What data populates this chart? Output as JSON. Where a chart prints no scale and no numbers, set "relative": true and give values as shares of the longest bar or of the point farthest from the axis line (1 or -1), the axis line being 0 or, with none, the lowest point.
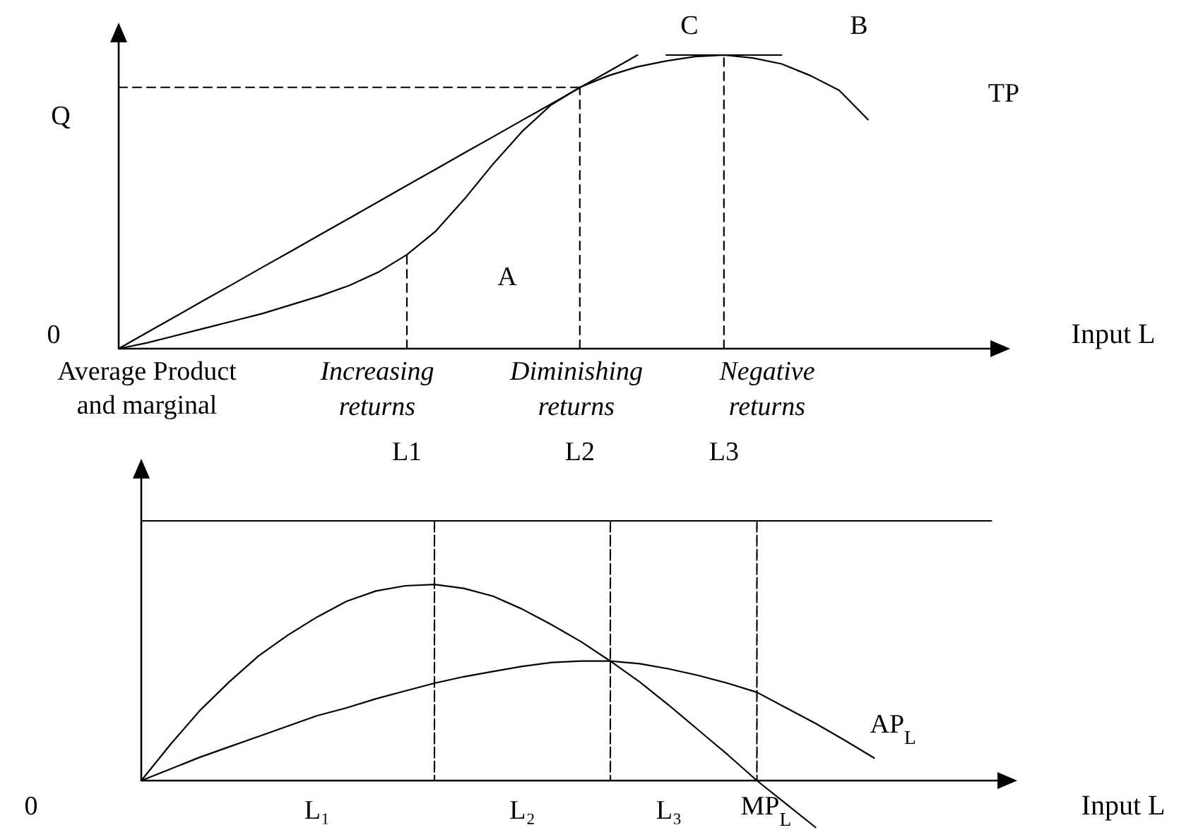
{
  "chart_data": [
    {
      "type": "line",
      "relative": true,
      "xlabel": "Input L",
      "categories": [
        null,
        null,
        null,
        null,
        null,
        null,
        null,
        null,
        null,
        null,
        "L1",
        null,
        null,
        null,
        null,
        null,
        "L2",
        null,
        null,
        null,
        null,
        "L3",
        null,
        null,
        null,
        null,
        null,
        null,
        null,
        null,
        null
      ],
      "series": [
        {
          "name": "TP",
          "color": "#000000",
          "values": [
            0,
            0.02,
            0.045,
            0.07,
            0.095,
            0.12,
            0.15,
            0.18,
            0.215,
            0.26,
            0.32,
            0.4,
            0.51,
            0.63,
            0.74,
            0.83,
            0.89,
            0.93,
            0.96,
            0.98,
            0.995,
            1,
            0.99,
            0.97,
            0.93,
            0.88,
            0.78,
            null,
            null,
            null,
            null
          ]
        },
        {
          "color": "#000000",
          "values": [
            0,
            0.056,
            0.111,
            0.167,
            0.222,
            0.278,
            0.333,
            0.389,
            0.444,
            0.5,
            0.556,
            0.611,
            0.667,
            0.722,
            0.778,
            0.833,
            0.889,
            0.944,
            1,
            null,
            null,
            null,
            null,
            null,
            null,
            null,
            null,
            null,
            null,
            null,
            null
          ]
        },
        {
          "color": "#000000",
          "values": [
            null,
            null,
            null,
            null,
            null,
            null,
            null,
            null,
            null,
            null,
            null,
            null,
            null,
            null,
            null,
            null,
            null,
            null,
            null,
            1,
            1,
            1,
            1,
            1,
            null,
            null,
            null,
            null,
            null,
            null,
            null
          ]
        },
        {
          "color": "#000000",
          "line_style": "dashed",
          "values": [
            0.89,
            0.89,
            0.89,
            0.89,
            0.89,
            0.89,
            0.89,
            0.89,
            0.89,
            0.89,
            0.89,
            0.89,
            0.89,
            0.89,
            0.89,
            0.89,
            0.89,
            null,
            null,
            null,
            null,
            null,
            null,
            null,
            null,
            null,
            null,
            null,
            null,
            null,
            null
          ]
        },
        {
          "color": "#000000",
          "line_style": "dashed",
          "x": [
            "L1",
            "L1"
          ],
          "values": [
            0,
            0.32
          ]
        },
        {
          "color": "#000000",
          "line_style": "dashed",
          "x": [
            "L2",
            "L2"
          ],
          "values": [
            0,
            0.89
          ]
        },
        {
          "color": "#000000",
          "line_style": "dashed",
          "x": [
            "L3",
            "L3"
          ],
          "values": [
            0,
            1
          ]
        }
      ],
      "annotations": [
        "C",
        "B",
        "A",
        "0",
        "Q",
        "Increasing returns",
        "Diminishing returns",
        "Negative returns"
      ]
    },
    {
      "type": "line",
      "relative": true,
      "xlabel": "Input L",
      "ylabel": "Average Product and marginal",
      "categories": [
        null,
        null,
        null,
        null,
        null,
        null,
        "L₁",
        null,
        null,
        null,
        null,
        null,
        null,
        "L₂",
        null,
        null,
        null,
        null,
        "L₃",
        null,
        null,
        null,
        null,
        null,
        null,
        null,
        null,
        null,
        null,
        null
      ],
      "series": [
        {
          "name": "MP$_{L}$",
          "color": "#000000",
          "values": [
            0,
            0.14,
            0.27,
            0.38,
            0.48,
            0.56,
            0.63,
            0.69,
            0.73,
            0.75,
            0.755,
            0.74,
            0.71,
            0.66,
            0.6,
            0.535,
            0.46,
            0.38,
            0.29,
            0.195,
            0.1,
            0,
            -0.09,
            -0.18,
            null,
            null,
            null,
            null,
            null,
            null
          ]
        },
        {
          "name": "AP$_{L}$",
          "color": "#000000",
          "values": [
            0,
            0.045,
            0.09,
            0.13,
            0.17,
            0.21,
            0.25,
            0.28,
            0.315,
            0.345,
            0.375,
            0.4,
            0.42,
            0.44,
            0.455,
            0.46,
            0.46,
            0.45,
            0.43,
            0.405,
            0.375,
            0.34,
            0.28,
            0.22,
            0.155,
            0.087,
            null,
            null,
            null,
            null
          ]
        },
        {
          "color": "#000000",
          "values": [
            1,
            1,
            1,
            1,
            1,
            1,
            1,
            1,
            1,
            1,
            1,
            1,
            1,
            1,
            1,
            1,
            1,
            1,
            1,
            1,
            1,
            1,
            1,
            1,
            1,
            1,
            1,
            1,
            1,
            1
          ]
        },
        {
          "type": "bar",
          "color": "#000000",
          "line_style": "dashed",
          "values": [
            null,
            null,
            null,
            null,
            null,
            null,
            null,
            null,
            null,
            null,
            1,
            null,
            null,
            null,
            null,
            null,
            1,
            null,
            null,
            null,
            null,
            1,
            null,
            null,
            null,
            null,
            null,
            null,
            null,
            null
          ]
        }
      ],
      "annotations": [
        "0"
      ]
    }
  ]
}
